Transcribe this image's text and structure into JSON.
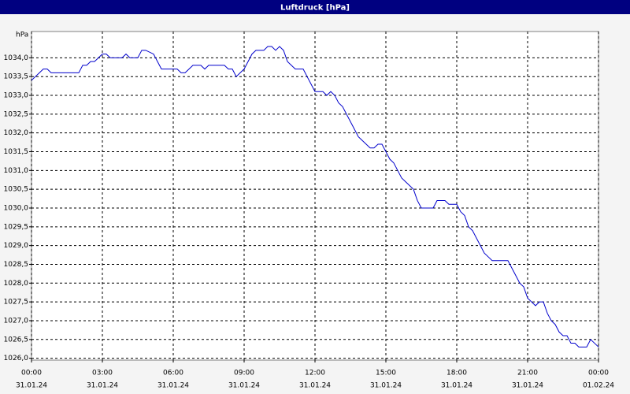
{
  "chart_data": {
    "type": "line",
    "title": "Luftdruck [hPa]",
    "ylabel": "hPa",
    "color": "#0000cc",
    "grid": true,
    "xlim": [
      0,
      1440
    ],
    "xticks": [
      {
        "value": 0,
        "label": "00:00"
      },
      {
        "value": 180,
        "label": "03:00"
      },
      {
        "value": 360,
        "label": "06:00"
      },
      {
        "value": 540,
        "label": "09:00"
      },
      {
        "value": 720,
        "label": "12:00"
      },
      {
        "value": 900,
        "label": "15:00"
      },
      {
        "value": 1080,
        "label": "18:00"
      },
      {
        "value": 1260,
        "label": "21:00"
      },
      {
        "value": 1440,
        "label": "00:00"
      }
    ],
    "xtick_dates": [
      "31.01.24",
      "31.01.24",
      "31.01.24",
      "31.01.24",
      "31.01.24",
      "31.01.24",
      "31.01.24",
      "31.01.24",
      "01.02.24"
    ],
    "ylim": [
      1025.95,
      1034.7
    ],
    "yticks": [
      {
        "value": 1026.0,
        "label": "1026,0"
      },
      {
        "value": 1026.5,
        "label": "1026,5"
      },
      {
        "value": 1027.0,
        "label": "1027,0"
      },
      {
        "value": 1027.5,
        "label": "1027,5"
      },
      {
        "value": 1028.0,
        "label": "1028,0"
      },
      {
        "value": 1028.5,
        "label": "1028,5"
      },
      {
        "value": 1029.0,
        "label": "1029,0"
      },
      {
        "value": 1029.5,
        "label": "1029,5"
      },
      {
        "value": 1030.0,
        "label": "1030,0"
      },
      {
        "value": 1030.5,
        "label": "1030,5"
      },
      {
        "value": 1031.0,
        "label": "1031,0"
      },
      {
        "value": 1031.5,
        "label": "1031,5"
      },
      {
        "value": 1032.0,
        "label": "1032,0"
      },
      {
        "value": 1032.5,
        "label": "1032,5"
      },
      {
        "value": 1033.0,
        "label": "1033,0"
      },
      {
        "value": 1033.5,
        "label": "1033,5"
      },
      {
        "value": 1034.0,
        "label": "1034,0"
      }
    ],
    "x": [
      0,
      20,
      30,
      40,
      50,
      120,
      130,
      140,
      150,
      160,
      170,
      180,
      190,
      200,
      230,
      240,
      250,
      270,
      280,
      290,
      310,
      320,
      330,
      340,
      370,
      380,
      390,
      400,
      410,
      430,
      440,
      450,
      490,
      500,
      510,
      520,
      530,
      540,
      550,
      560,
      570,
      590,
      600,
      610,
      620,
      630,
      640,
      650,
      660,
      670,
      690,
      700,
      710,
      720,
      740,
      750,
      760,
      770,
      780,
      790,
      800,
      810,
      820,
      830,
      840,
      850,
      860,
      870,
      880,
      890,
      900,
      910,
      920,
      930,
      940,
      950,
      960,
      970,
      980,
      990,
      1010,
      1020,
      1030,
      1050,
      1060,
      1070,
      1080,
      1090,
      1100,
      1110,
      1120,
      1130,
      1140,
      1150,
      1160,
      1170,
      1210,
      1220,
      1230,
      1240,
      1250,
      1260,
      1270,
      1280,
      1290,
      1300,
      1310,
      1320,
      1330,
      1340,
      1350,
      1360,
      1370,
      1380,
      1390,
      1410,
      1420,
      1430,
      1440
    ],
    "values": [
      1033.4,
      1033.6,
      1033.7,
      1033.7,
      1033.6,
      1033.6,
      1033.8,
      1033.8,
      1033.9,
      1033.9,
      1034.0,
      1034.1,
      1034.1,
      1034.0,
      1034.0,
      1034.1,
      1034.0,
      1034.0,
      1034.2,
      1034.2,
      1034.1,
      1033.9,
      1033.7,
      1033.7,
      1033.7,
      1033.6,
      1033.6,
      1033.7,
      1033.8,
      1033.8,
      1033.7,
      1033.8,
      1033.8,
      1033.7,
      1033.7,
      1033.5,
      1033.6,
      1033.7,
      1033.9,
      1034.1,
      1034.2,
      1034.2,
      1034.3,
      1034.3,
      1034.2,
      1034.3,
      1034.2,
      1033.9,
      1033.8,
      1033.7,
      1033.7,
      1033.5,
      1033.3,
      1033.1,
      1033.1,
      1033.0,
      1033.1,
      1033.0,
      1032.8,
      1032.7,
      1032.5,
      1032.3,
      1032.1,
      1031.9,
      1031.8,
      1031.7,
      1031.6,
      1031.6,
      1031.7,
      1031.7,
      1031.5,
      1031.3,
      1031.2,
      1031.0,
      1030.8,
      1030.7,
      1030.6,
      1030.5,
      1030.2,
      1030.0,
      1030.0,
      1030.0,
      1030.2,
      1030.2,
      1030.1,
      1030.1,
      1030.1,
      1029.9,
      1029.8,
      1029.5,
      1029.4,
      1029.2,
      1029.0,
      1028.8,
      1028.7,
      1028.6,
      1028.6,
      1028.4,
      1028.2,
      1028.0,
      1027.9,
      1027.6,
      1027.5,
      1027.4,
      1027.5,
      1027.5,
      1027.2,
      1027.0,
      1026.9,
      1026.7,
      1026.6,
      1026.6,
      1026.4,
      1026.4,
      1026.3,
      1026.3,
      1026.5,
      1026.4,
      1026.3
    ]
  }
}
